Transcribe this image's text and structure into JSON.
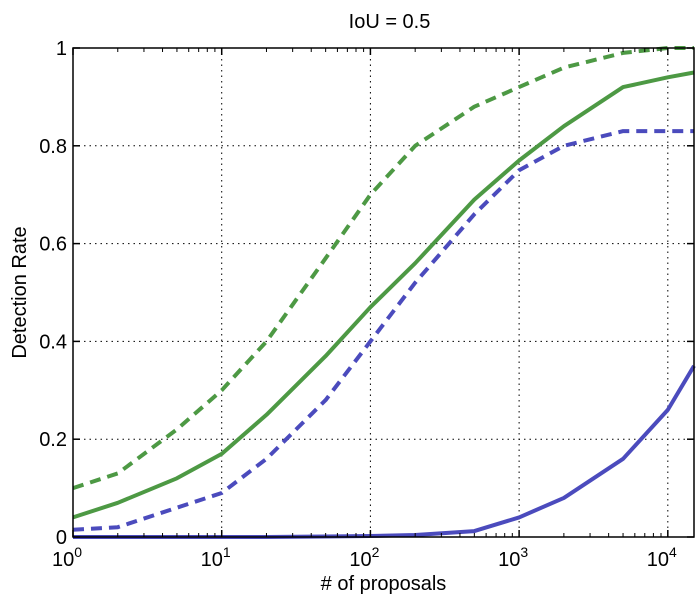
{
  "chart_data": {
    "type": "line",
    "title": "IoU = 0.5",
    "xlabel": "# of proposals",
    "ylabel": "Detection Rate",
    "xscale": "log",
    "xlim": [
      1,
      15000
    ],
    "ylim": [
      0,
      1
    ],
    "grid": true,
    "legend": "none",
    "xticks": [
      {
        "value": 1,
        "base": "10",
        "exp": "0"
      },
      {
        "value": 10,
        "base": "10",
        "exp": "1"
      },
      {
        "value": 100,
        "base": "10",
        "exp": "2"
      },
      {
        "value": 1000,
        "base": "10",
        "exp": "3"
      },
      {
        "value": 10000,
        "base": "10",
        "exp": "4"
      }
    ],
    "yticks": [
      {
        "value": 0,
        "label": "0"
      },
      {
        "value": 0.2,
        "label": "0.2"
      },
      {
        "value": 0.4,
        "label": "0.4"
      },
      {
        "value": 0.6,
        "label": "0.6"
      },
      {
        "value": 0.8,
        "label": "0.8"
      },
      {
        "value": 1,
        "label": "1"
      }
    ],
    "series": [
      {
        "color": "#4d9944",
        "style": "dashed",
        "x": [
          1,
          2,
          5,
          10,
          20,
          50,
          100,
          200,
          500,
          1000,
          2000,
          5000,
          10000,
          15000
        ],
        "y": [
          0.1,
          0.13,
          0.22,
          0.3,
          0.4,
          0.57,
          0.7,
          0.8,
          0.88,
          0.92,
          0.96,
          0.99,
          1.0,
          1.0
        ]
      },
      {
        "color": "#4d9944",
        "style": "solid",
        "x": [
          1,
          2,
          5,
          10,
          20,
          50,
          100,
          200,
          500,
          1000,
          2000,
          5000,
          10000,
          15000
        ],
        "y": [
          0.04,
          0.07,
          0.12,
          0.17,
          0.25,
          0.37,
          0.47,
          0.56,
          0.69,
          0.77,
          0.84,
          0.92,
          0.94,
          0.95
        ]
      },
      {
        "color": "#4b4bbd",
        "style": "dashed",
        "x": [
          1,
          2,
          5,
          10,
          20,
          50,
          100,
          200,
          500,
          1000,
          2000,
          5000,
          10000,
          15000
        ],
        "y": [
          0.015,
          0.02,
          0.06,
          0.09,
          0.16,
          0.28,
          0.4,
          0.52,
          0.66,
          0.75,
          0.8,
          0.83,
          0.83,
          0.83
        ]
      },
      {
        "color": "#4b4bbd",
        "style": "solid",
        "x": [
          1,
          2,
          5,
          10,
          20,
          50,
          100,
          200,
          500,
          1000,
          2000,
          5000,
          10000,
          15000
        ],
        "y": [
          0,
          0,
          0,
          0,
          0,
          0.001,
          0.002,
          0.004,
          0.012,
          0.04,
          0.08,
          0.16,
          0.26,
          0.35
        ]
      }
    ]
  }
}
